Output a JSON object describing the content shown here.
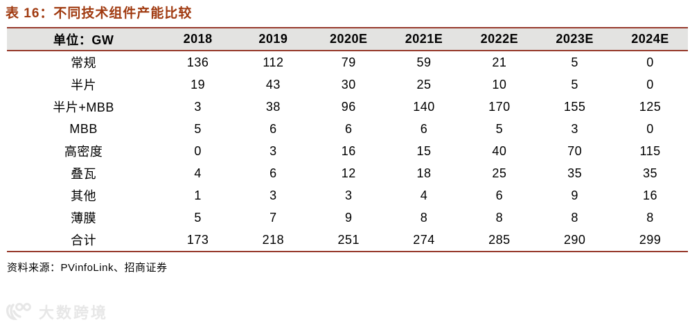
{
  "title": "表 16：不同技术组件产能比较",
  "table": {
    "unit_header": "单位：GW",
    "year_headers": [
      "2018",
      "2019",
      "2020E",
      "2021E",
      "2022E",
      "2023E",
      "2024E"
    ],
    "rows": [
      {
        "label": "常规",
        "values": [
          136,
          112,
          79,
          59,
          21,
          5,
          0
        ]
      },
      {
        "label": "半片",
        "values": [
          19,
          43,
          30,
          25,
          10,
          5,
          0
        ]
      },
      {
        "label": "半片+MBB",
        "values": [
          3,
          38,
          96,
          140,
          170,
          155,
          125
        ]
      },
      {
        "label": "MBB",
        "values": [
          5,
          6,
          6,
          6,
          5,
          3,
          0
        ]
      },
      {
        "label": "高密度",
        "values": [
          0,
          3,
          16,
          15,
          40,
          70,
          115
        ]
      },
      {
        "label": "叠瓦",
        "values": [
          4,
          6,
          12,
          18,
          25,
          35,
          35
        ]
      },
      {
        "label": "其他",
        "values": [
          1,
          3,
          3,
          4,
          6,
          9,
          16
        ]
      },
      {
        "label": "薄膜",
        "values": [
          5,
          7,
          9,
          8,
          8,
          8,
          8
        ]
      },
      {
        "label": "合计",
        "values": [
          173,
          218,
          251,
          274,
          285,
          290,
          299
        ]
      }
    ]
  },
  "source": "资料来源：PVinfoLink、招商证券",
  "watermark": {
    "text": "大数跨境"
  },
  "colors": {
    "accent": "#A03A10",
    "border": "#96392B",
    "header_bg": "#E3E3E1",
    "watermark": "#E7E7E7"
  }
}
